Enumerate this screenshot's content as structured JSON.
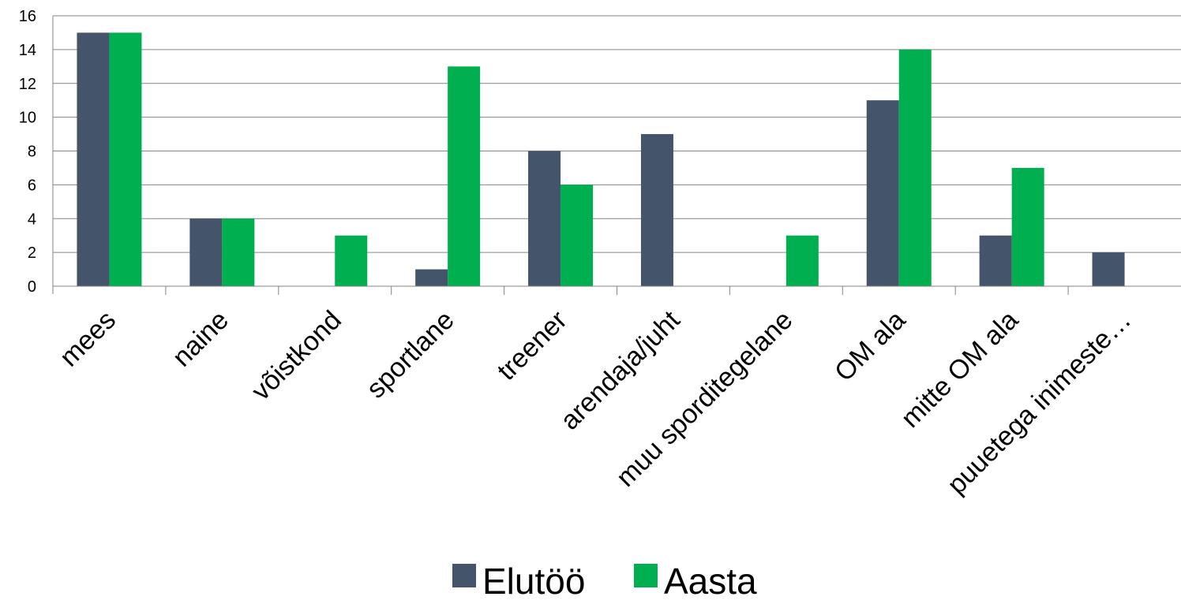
{
  "chart_data": {
    "type": "bar",
    "categories": [
      "mees",
      "naine",
      "võistkond",
      "sportlane",
      "treener",
      "arendaja/juht",
      "muu sporditegelane",
      "OM ala",
      "mitte OM ala",
      "puuetega inimeste…"
    ],
    "series": [
      {
        "name": "Elutöö",
        "color": "#44546a",
        "values": [
          15,
          4,
          0,
          1,
          8,
          9,
          0,
          11,
          3,
          2
        ]
      },
      {
        "name": "Aasta",
        "color": "#00b050",
        "values": [
          15,
          4,
          3,
          13,
          6,
          0,
          3,
          14,
          7,
          0
        ]
      }
    ],
    "ylim": [
      0,
      16
    ],
    "yticks": [
      "0",
      "2",
      "4",
      "6",
      "8",
      "10",
      "12",
      "14",
      "16"
    ],
    "grid": true,
    "legend_position": "bottom-center"
  }
}
